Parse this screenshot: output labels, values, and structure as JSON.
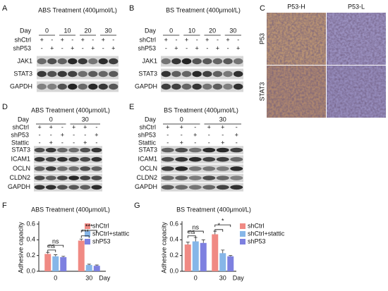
{
  "panels": [
    {
      "letter": "A",
      "title": "ABS Treatment (400μmol/L)",
      "day_label": "Day",
      "days": [
        "0",
        "10",
        "20",
        "30"
      ],
      "conditions": [
        {
          "name": "shCtrl",
          "signs": [
            "+",
            "-",
            "+",
            "-",
            "+",
            "-",
            "+",
            "-"
          ]
        },
        {
          "name": "shP53",
          "signs": [
            "-",
            "+",
            "-",
            "+",
            "-",
            "+",
            "-",
            "+"
          ]
        }
      ],
      "proteins": [
        "JAK1",
        "STAT3",
        "GAPDH"
      ]
    },
    {
      "letter": "B",
      "title": "BS Treatment (400μmol/L)",
      "day_label": "Day",
      "days": [
        "0",
        "10",
        "20",
        "30"
      ],
      "conditions": [
        {
          "name": "shCtrl",
          "signs": [
            "+",
            "-",
            "+",
            "-",
            "+",
            "-",
            "+",
            "-"
          ]
        },
        {
          "name": "shP53",
          "signs": [
            "-",
            "+",
            "-",
            "+",
            "-",
            "+",
            "-",
            "+"
          ]
        }
      ],
      "proteins": [
        "JAK1",
        "STAT3",
        "GAPDH"
      ]
    },
    {
      "letter": "C",
      "columns": [
        "P53-H",
        "P53-L"
      ],
      "rows": [
        "P53",
        "STAT3"
      ]
    },
    {
      "letter": "D",
      "title": "ABS Treatment (400μmol/L)",
      "day_label": "Day",
      "days": [
        "0",
        "30"
      ],
      "conditions": [
        {
          "name": "shCtrl",
          "signs": [
            "+",
            "+",
            "-",
            "+",
            "+",
            "-"
          ]
        },
        {
          "name": "shP53",
          "signs": [
            "-",
            "-",
            "+",
            "-",
            "-",
            "+"
          ]
        },
        {
          "name": "Stattic",
          "signs": [
            "-",
            "+",
            "-",
            "-",
            "+",
            "-"
          ]
        }
      ],
      "proteins": [
        "STAT3",
        "ICAM1",
        "OCLN",
        "CLDN2",
        "GAPDH"
      ]
    },
    {
      "letter": "E",
      "title": "BS Treatment (400μmol/L)",
      "day_label": "Day",
      "days": [
        "0",
        "30"
      ],
      "conditions": [
        {
          "name": "shCtrl",
          "signs": [
            "+",
            "+",
            "-",
            "+",
            "+",
            "-"
          ]
        },
        {
          "name": "shP53",
          "signs": [
            "-",
            "-",
            "+",
            "-",
            "-",
            "+"
          ]
        },
        {
          "name": "Stattic",
          "signs": [
            "-",
            "+",
            "-",
            "-",
            "+",
            "-"
          ]
        }
      ],
      "proteins": [
        "STAT3",
        "ICAM1",
        "OCLN",
        "CLDN2",
        "GAPDH"
      ]
    }
  ],
  "chart_data": [
    {
      "type": "bar",
      "letter": "F",
      "title": "ABS Treatment (400μmol/L)",
      "categories": [
        "0",
        "30"
      ],
      "x_label": "Day",
      "y_label": "Adhesive capacity",
      "ylim": [
        0,
        0.6
      ],
      "yticks": [
        {
          "value": 0,
          "label": "0.0"
        },
        {
          "value": 0.2,
          "label": "0.2"
        },
        {
          "value": 0.4,
          "label": "0.4"
        },
        {
          "value": 0.6,
          "label": "0.6"
        }
      ],
      "series": [
        {
          "name": "shCtrl",
          "color": "#f08a84",
          "values": [
            0.22,
            0.39
          ],
          "errors": [
            0.02,
            0.02
          ]
        },
        {
          "name": "shCtrl+stattic",
          "color": "#86b6e8",
          "values": [
            0.19,
            0.08
          ],
          "errors": [
            0.02,
            0.01
          ]
        },
        {
          "name": "shP53",
          "color": "#7d80e0",
          "values": [
            0.18,
            0.07
          ],
          "errors": [
            0.01,
            0.01
          ]
        }
      ],
      "annotations": [
        "ns",
        "ns",
        "***",
        "***"
      ]
    },
    {
      "type": "bar",
      "letter": "G",
      "title": "BS Treatment (400μmol/L)",
      "categories": [
        "0",
        "30"
      ],
      "x_label": "Day",
      "y_label": "Adhesive capacity",
      "ylim": [
        0,
        0.6
      ],
      "yticks": [
        {
          "value": 0,
          "label": "0.0"
        },
        {
          "value": 0.2,
          "label": "0.2"
        },
        {
          "value": 0.4,
          "label": "0.4"
        },
        {
          "value": 0.6,
          "label": "0.6"
        }
      ],
      "series": [
        {
          "name": "shCtrl",
          "color": "#f08a84",
          "values": [
            0.34,
            0.47
          ],
          "errors": [
            0.03,
            0.04
          ]
        },
        {
          "name": "shCtrl+stattic",
          "color": "#86b6e8",
          "values": [
            0.38,
            0.23
          ],
          "errors": [
            0.05,
            0.04
          ]
        },
        {
          "name": "shP53",
          "color": "#7d80e0",
          "values": [
            0.36,
            0.19
          ],
          "errors": [
            0.04,
            0.01
          ]
        }
      ],
      "annotations": [
        "ns",
        "ns",
        "*",
        "*"
      ]
    }
  ]
}
